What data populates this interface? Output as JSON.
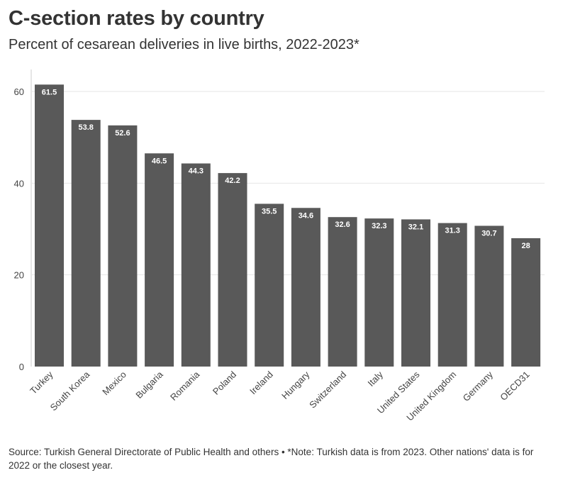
{
  "header": {
    "title": "C-section rates by country",
    "subtitle": "Percent of cesarean deliveries in live births, 2022-2023*"
  },
  "footer": {
    "source": "Source: Turkish General Directorate of Public Health and others • *Note: Turkish data is from 2023. Other nations' data is for 2022 or the closest year."
  },
  "colors": {
    "bar": "#595959",
    "grid": "#e6e6e6",
    "axis": "#cccccc",
    "label": "#ffffff"
  },
  "chart_data": {
    "type": "bar",
    "title": "C-section rates by country",
    "subtitle": "Percent of cesarean deliveries in live births, 2022-2023*",
    "xlabel": "",
    "ylabel": "",
    "ylim": [
      0,
      65
    ],
    "yticks": [
      0,
      20,
      40,
      60
    ],
    "grid": true,
    "categories": [
      "Turkey",
      "South Korea",
      "Mexico",
      "Bulgaria",
      "Romania",
      "Poland",
      "Ireland",
      "Hungary",
      "Switzerland",
      "Italy",
      "United States",
      "United Kingdom",
      "Germany",
      "OECD31"
    ],
    "values": [
      61.5,
      53.8,
      52.6,
      46.5,
      44.3,
      42.2,
      35.5,
      34.6,
      32.6,
      32.3,
      32.1,
      31.3,
      30.7,
      28
    ],
    "data_labels": [
      "61.5",
      "53.8",
      "52.6",
      "46.5",
      "44.3",
      "42.2",
      "35.5",
      "34.6",
      "32.6",
      "32.3",
      "32.1",
      "31.3",
      "30.7",
      "28"
    ]
  }
}
